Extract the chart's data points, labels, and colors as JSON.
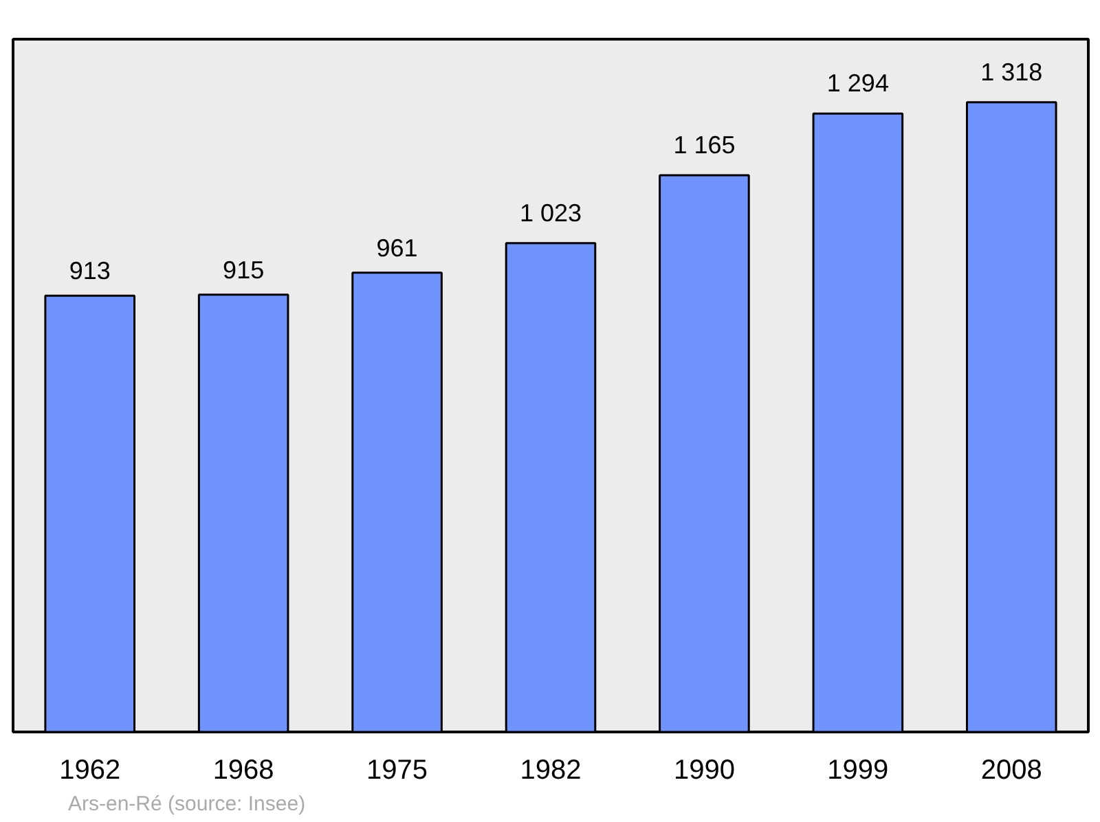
{
  "chart_data": {
    "type": "bar",
    "categories": [
      "1962",
      "1968",
      "1975",
      "1982",
      "1990",
      "1999",
      "2008"
    ],
    "values": [
      913,
      915,
      961,
      1023,
      1165,
      1294,
      1318
    ],
    "value_labels": [
      "913",
      "915",
      "961",
      "1 023",
      "1 165",
      "1 294",
      "1 318"
    ],
    "color": "#7094ff",
    "annotations": [
      "Ars-en-Ré    (source: Insee)"
    ]
  }
}
